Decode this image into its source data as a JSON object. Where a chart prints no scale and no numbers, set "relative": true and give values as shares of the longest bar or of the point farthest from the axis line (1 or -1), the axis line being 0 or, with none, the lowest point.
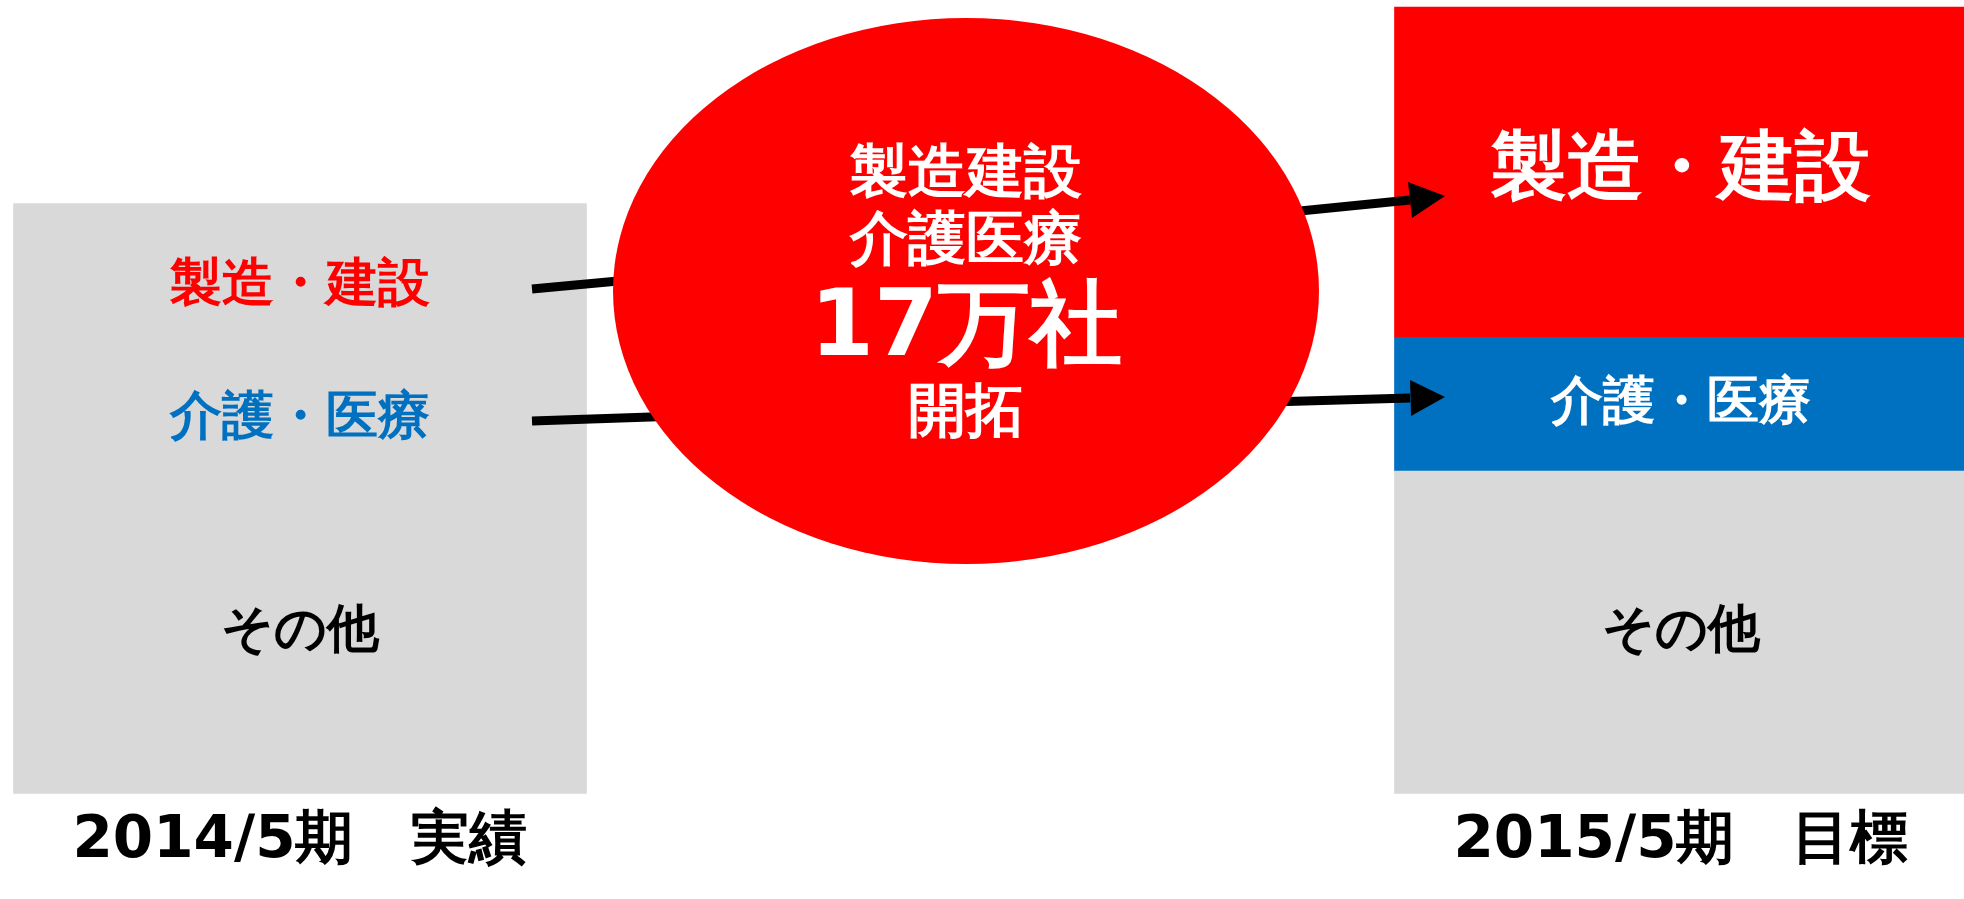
{
  "chart_data": {
    "type": "bar",
    "relative": true,
    "stacked": true,
    "grid": false,
    "categories": [
      "2014/5期　実績",
      "2015/5期　目標"
    ],
    "series": [
      {
        "name": "その他",
        "colors": [
          "#d9d9d9",
          "#d9d9d9"
        ],
        "values": [
          0.41,
          0.41
        ]
      },
      {
        "name": "介護・医療",
        "colors": [
          "#d9d9d9",
          "#0070c0"
        ],
        "values": [
          0.13,
          0.17
        ]
      },
      {
        "name": "製造・建設",
        "colors": [
          "#d9d9d9",
          "#ff0000"
        ],
        "values": [
          0.21,
          0.42
        ]
      }
    ],
    "annotations": [
      "製造建設",
      "介護医療",
      "17万社",
      "開拓"
    ]
  }
}
